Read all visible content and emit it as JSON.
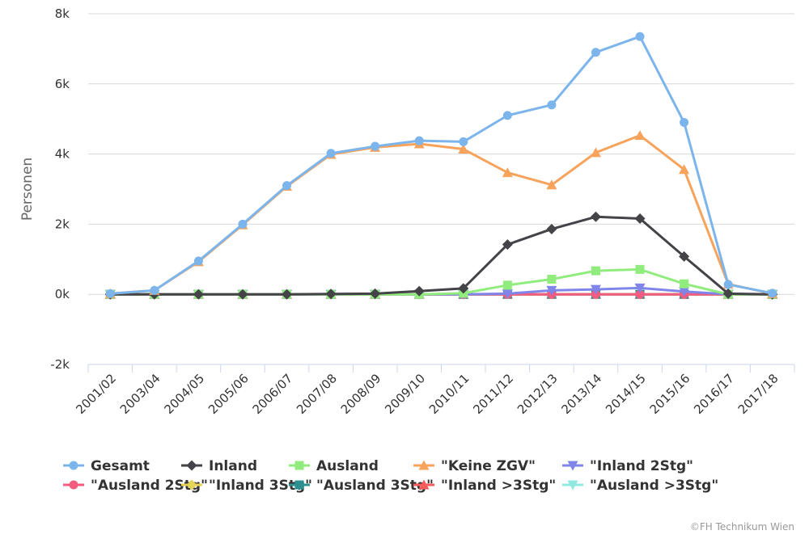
{
  "chart_data": {
    "type": "line",
    "title": "",
    "xlabel": "",
    "ylabel": "Personen",
    "ylim": [
      -2000,
      8000
    ],
    "y_ticks": [
      -2000,
      0,
      2000,
      4000,
      6000,
      8000
    ],
    "y_tick_labels": [
      "-2k",
      "0k",
      "2k",
      "4k",
      "6k",
      "8k"
    ],
    "grid": true,
    "legend_position": "bottom",
    "categories": [
      "2001/02",
      "2003/04",
      "2004/05",
      "2005/06",
      "2006/07",
      "2007/08",
      "2008/09",
      "2009/10",
      "2010/11",
      "2011/12",
      "2012/13",
      "2013/14",
      "2014/15",
      "2015/16",
      "2016/17",
      "2017/18"
    ],
    "series": [
      {
        "name": "Gesamt",
        "color": "#7cb5ec",
        "marker": "circle",
        "values": [
          20,
          110,
          950,
          2000,
          3100,
          4020,
          4220,
          4380,
          4350,
          5100,
          5400,
          6900,
          7350,
          4900,
          280,
          30
        ]
      },
      {
        "name": "Inland",
        "color": "#434348",
        "marker": "diamond",
        "values": [
          0,
          0,
          0,
          0,
          0,
          10,
          20,
          90,
          170,
          1420,
          1860,
          2210,
          2160,
          1080,
          20,
          0
        ]
      },
      {
        "name": "Ausland",
        "color": "#90ed7d",
        "marker": "square",
        "values": [
          0,
          0,
          0,
          0,
          0,
          0,
          0,
          0,
          30,
          260,
          430,
          670,
          710,
          300,
          0,
          0
        ]
      },
      {
        "name": "\"Keine ZGV\"",
        "color": "#f7a35c",
        "marker": "triangle",
        "values": [
          20,
          110,
          930,
          1980,
          3080,
          3990,
          4190,
          4290,
          4140,
          3470,
          3120,
          4040,
          4530,
          3560,
          290,
          20
        ]
      },
      {
        "name": "\"Inland 2Stg\"",
        "color": "#8085e9",
        "marker": "triangle-down",
        "values": [
          0,
          0,
          0,
          0,
          0,
          0,
          0,
          0,
          0,
          20,
          110,
          140,
          180,
          80,
          0,
          0
        ]
      },
      {
        "name": "\"Ausland 2Stg\"",
        "color": "#f15c80",
        "marker": "circle",
        "values": [
          0,
          0,
          0,
          0,
          0,
          0,
          0,
          0,
          0,
          0,
          0,
          0,
          0,
          0,
          0,
          0
        ]
      },
      {
        "name": "\"Inland 3Stg\"",
        "color": "#e4d354",
        "marker": "diamond",
        "values": [
          0,
          0,
          0,
          0,
          0,
          0,
          0,
          0,
          0,
          0,
          0,
          0,
          0,
          0,
          0,
          0
        ]
      },
      {
        "name": "\"Ausland 3Stg\"",
        "color": "#2b908f",
        "marker": "square",
        "values": [
          0,
          0,
          0,
          0,
          0,
          0,
          0,
          0,
          0,
          0,
          0,
          0,
          0,
          0,
          0,
          0
        ]
      },
      {
        "name": "\"Inland >3Stg\"",
        "color": "#f45b5b",
        "marker": "triangle",
        "values": [
          0,
          0,
          0,
          0,
          0,
          0,
          0,
          0,
          0,
          0,
          0,
          0,
          0,
          0,
          0,
          0
        ]
      },
      {
        "name": "\"Ausland >3Stg\"",
        "color": "#91e8e1",
        "marker": "triangle-down",
        "values": [
          0,
          0,
          0,
          0,
          0,
          0,
          0,
          0,
          0,
          0,
          0,
          0,
          0,
          0,
          0,
          0
        ]
      }
    ]
  },
  "credit": "©FH Technikum Wien"
}
